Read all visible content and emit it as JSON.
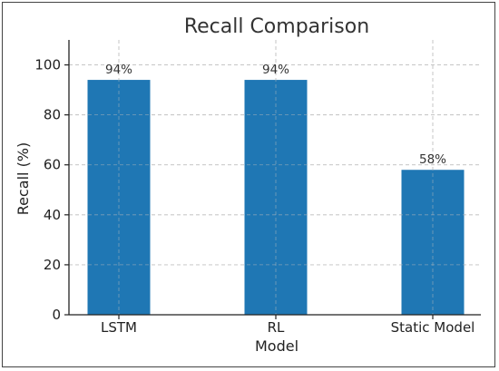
{
  "chart_data": {
    "type": "bar",
    "title": "Recall Comparison",
    "xlabel": "Model",
    "ylabel": "Recall (%)",
    "categories": [
      "LSTM",
      "RL",
      "Static Model"
    ],
    "values": [
      94,
      94,
      58
    ],
    "data_labels": [
      "94%",
      "94%",
      "58%"
    ],
    "ylim": [
      0,
      110
    ],
    "yticks": [
      0,
      20,
      40,
      60,
      80,
      100
    ],
    "grid": true,
    "bar_color": "#1f77b4",
    "grid_color": "#cccccc"
  }
}
